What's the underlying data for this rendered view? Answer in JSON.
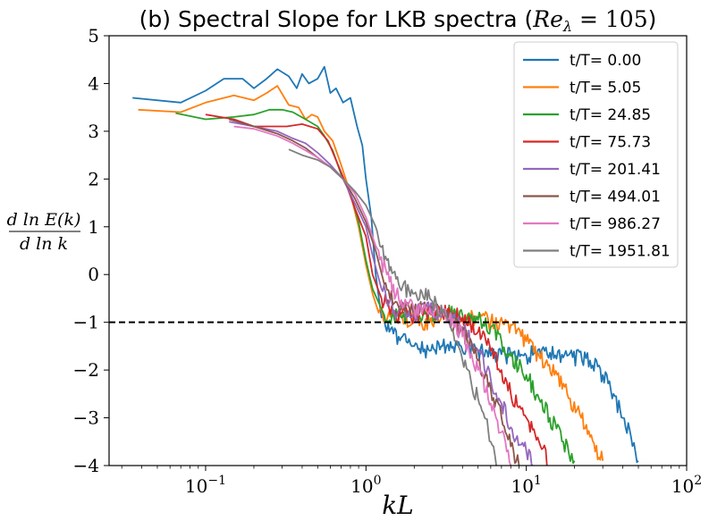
{
  "chart_data": {
    "type": "line",
    "title": "(b) Spectral Slope for LKB spectra (Re_λ = 105)",
    "title_prefix": "(b) Spectral Slope for LKB spectra (",
    "title_math": "Re",
    "title_sub": "λ",
    "title_eq": " = 105",
    "title_suffix": ")",
    "xlabel": "kL",
    "ylabel_num": "d ln E(k)",
    "ylabel_den": "d ln k",
    "xscale": "log",
    "xlim": [
      0.025,
      100
    ],
    "ylim": [
      -4,
      5
    ],
    "xticks": [
      {
        "value": 0.1,
        "base": "10",
        "exp": "−1"
      },
      {
        "value": 1,
        "base": "10",
        "exp": "0"
      },
      {
        "value": 10,
        "base": "10",
        "exp": "1"
      },
      {
        "value": 100,
        "base": "10",
        "exp": "2"
      }
    ],
    "yticks": [
      {
        "value": 5,
        "label": "5"
      },
      {
        "value": 4,
        "label": "4"
      },
      {
        "value": 3,
        "label": "3"
      },
      {
        "value": 2,
        "label": "2"
      },
      {
        "value": 1,
        "label": "1"
      },
      {
        "value": 0,
        "label": "0"
      },
      {
        "value": -1,
        "label": "−1"
      },
      {
        "value": -2,
        "label": "−2"
      },
      {
        "value": -3,
        "label": "−3"
      },
      {
        "value": -4,
        "label": "−4"
      }
    ],
    "reference_line": {
      "y": -1,
      "style": "dashed",
      "color": "#000000"
    },
    "legend_position": "top-right",
    "series": [
      {
        "name": "t/T= 0.00",
        "color": "#1f77b4",
        "points": [
          [
            0.035,
            3.7
          ],
          [
            0.07,
            3.6
          ],
          [
            0.1,
            3.85
          ],
          [
            0.13,
            4.1
          ],
          [
            0.17,
            4.1
          ],
          [
            0.2,
            3.9
          ],
          [
            0.24,
            4.1
          ],
          [
            0.28,
            4.3
          ],
          [
            0.33,
            4.15
          ],
          [
            0.37,
            3.9
          ],
          [
            0.4,
            4.2
          ],
          [
            0.44,
            4.0
          ],
          [
            0.5,
            4.1
          ],
          [
            0.55,
            4.35
          ],
          [
            0.6,
            3.8
          ],
          [
            0.65,
            3.9
          ],
          [
            0.72,
            3.6
          ],
          [
            0.8,
            3.7
          ],
          [
            0.88,
            3.1
          ],
          [
            0.95,
            2.7
          ],
          [
            1.0,
            2.0
          ],
          [
            1.08,
            1.2
          ],
          [
            1.15,
            0.0
          ],
          [
            1.25,
            -0.9
          ],
          [
            1.4,
            -1.2
          ],
          [
            1.6,
            -1.3
          ],
          [
            2.0,
            -1.5
          ],
          [
            2.5,
            -1.6
          ],
          [
            3.0,
            -1.5
          ],
          [
            4.0,
            -1.6
          ],
          [
            5.0,
            -1.6
          ],
          [
            6.0,
            -1.7
          ],
          [
            8.0,
            -1.7
          ],
          [
            10.0,
            -1.7
          ],
          [
            13.0,
            -1.6
          ],
          [
            18.0,
            -1.7
          ],
          [
            25.0,
            -1.8
          ],
          [
            30.0,
            -2.1
          ],
          [
            35.0,
            -2.5
          ],
          [
            40.0,
            -3.0
          ],
          [
            45.0,
            -3.4
          ],
          [
            50.0,
            -3.9
          ]
        ]
      },
      {
        "name": "t/T= 5.05",
        "color": "#ff7f0e",
        "points": [
          [
            0.038,
            3.45
          ],
          [
            0.07,
            3.4
          ],
          [
            0.1,
            3.6
          ],
          [
            0.15,
            3.75
          ],
          [
            0.2,
            3.65
          ],
          [
            0.24,
            3.8
          ],
          [
            0.28,
            3.95
          ],
          [
            0.33,
            3.55
          ],
          [
            0.38,
            3.5
          ],
          [
            0.42,
            3.25
          ],
          [
            0.46,
            3.35
          ],
          [
            0.5,
            3.3
          ],
          [
            0.55,
            3.0
          ],
          [
            0.62,
            2.8
          ],
          [
            0.7,
            2.3
          ],
          [
            0.8,
            1.7
          ],
          [
            0.9,
            1.0
          ],
          [
            1.0,
            0.2
          ],
          [
            1.1,
            -0.4
          ],
          [
            1.2,
            -0.8
          ],
          [
            1.5,
            -0.9
          ],
          [
            2.0,
            -0.95
          ],
          [
            2.5,
            -1.0
          ],
          [
            3.0,
            -0.85
          ],
          [
            4.0,
            -0.9
          ],
          [
            5.0,
            -0.9
          ],
          [
            6.0,
            -1.0
          ],
          [
            8.0,
            -1.05
          ],
          [
            10.0,
            -1.4
          ],
          [
            12.0,
            -1.7
          ],
          [
            15.0,
            -2.1
          ],
          [
            18.0,
            -2.5
          ],
          [
            22.0,
            -3.0
          ],
          [
            25.0,
            -3.4
          ],
          [
            30.0,
            -3.9
          ]
        ]
      },
      {
        "name": "t/T= 24.85",
        "color": "#2ca02c",
        "points": [
          [
            0.065,
            3.38
          ],
          [
            0.1,
            3.25
          ],
          [
            0.15,
            3.3
          ],
          [
            0.2,
            3.35
          ],
          [
            0.25,
            3.45
          ],
          [
            0.3,
            3.45
          ],
          [
            0.35,
            3.4
          ],
          [
            0.42,
            3.25
          ],
          [
            0.5,
            3.1
          ],
          [
            0.55,
            2.9
          ],
          [
            0.62,
            2.6
          ],
          [
            0.7,
            2.1
          ],
          [
            0.8,
            1.7
          ],
          [
            0.9,
            1.1
          ],
          [
            1.0,
            0.3
          ],
          [
            1.1,
            -0.3
          ],
          [
            1.3,
            -0.85
          ],
          [
            1.6,
            -0.9
          ],
          [
            2.0,
            -0.85
          ],
          [
            3.0,
            -0.8
          ],
          [
            4.0,
            -0.85
          ],
          [
            5.0,
            -0.95
          ],
          [
            6.0,
            -1.1
          ],
          [
            7.0,
            -1.4
          ],
          [
            8.0,
            -1.7
          ],
          [
            10.0,
            -2.1
          ],
          [
            12.0,
            -2.6
          ],
          [
            14.0,
            -3.0
          ],
          [
            17.0,
            -3.5
          ],
          [
            20.0,
            -3.9
          ]
        ]
      },
      {
        "name": "t/T= 75.73",
        "color": "#d62728",
        "points": [
          [
            0.1,
            3.35
          ],
          [
            0.15,
            3.25
          ],
          [
            0.2,
            3.1
          ],
          [
            0.26,
            3.1
          ],
          [
            0.32,
            3.1
          ],
          [
            0.4,
            3.15
          ],
          [
            0.5,
            3.05
          ],
          [
            0.58,
            2.8
          ],
          [
            0.65,
            2.4
          ],
          [
            0.75,
            1.9
          ],
          [
            0.85,
            1.4
          ],
          [
            1.0,
            0.8
          ],
          [
            1.1,
            0.0
          ],
          [
            1.25,
            -0.5
          ],
          [
            1.5,
            -0.8
          ],
          [
            2.0,
            -0.85
          ],
          [
            2.5,
            -0.8
          ],
          [
            3.0,
            -0.8
          ],
          [
            4.0,
            -0.9
          ],
          [
            5.0,
            -1.2
          ],
          [
            6.0,
            -1.6
          ],
          [
            7.0,
            -2.0
          ],
          [
            8.0,
            -2.5
          ],
          [
            10.0,
            -3.0
          ],
          [
            12.0,
            -3.5
          ],
          [
            14.0,
            -4.0
          ]
        ]
      },
      {
        "name": "t/T= 201.41",
        "color": "#9467bd",
        "points": [
          [
            0.14,
            3.2
          ],
          [
            0.2,
            3.1
          ],
          [
            0.28,
            3.0
          ],
          [
            0.35,
            2.85
          ],
          [
            0.42,
            2.75
          ],
          [
            0.5,
            2.55
          ],
          [
            0.6,
            2.3
          ],
          [
            0.72,
            2.0
          ],
          [
            0.85,
            1.5
          ],
          [
            1.0,
            1.0
          ],
          [
            1.1,
            0.4
          ],
          [
            1.25,
            -0.3
          ],
          [
            1.5,
            -0.75
          ],
          [
            2.0,
            -0.8
          ],
          [
            2.5,
            -0.75
          ],
          [
            3.0,
            -0.85
          ],
          [
            4.0,
            -1.1
          ],
          [
            5.0,
            -1.6
          ],
          [
            6.0,
            -2.2
          ],
          [
            7.0,
            -2.7
          ],
          [
            8.0,
            -3.2
          ],
          [
            10.0,
            -3.7
          ],
          [
            11.0,
            -4.0
          ]
        ]
      },
      {
        "name": "t/T= 494.01",
        "color": "#8c564b",
        "points": [
          [
            0.14,
            3.25
          ],
          [
            0.2,
            3.1
          ],
          [
            0.28,
            2.95
          ],
          [
            0.35,
            2.8
          ],
          [
            0.42,
            2.65
          ],
          [
            0.5,
            2.45
          ],
          [
            0.6,
            2.25
          ],
          [
            0.72,
            2.0
          ],
          [
            0.85,
            1.6
          ],
          [
            1.0,
            1.1
          ],
          [
            1.15,
            0.5
          ],
          [
            1.3,
            -0.2
          ],
          [
            1.5,
            -0.6
          ],
          [
            2.0,
            -0.75
          ],
          [
            2.5,
            -0.7
          ],
          [
            3.0,
            -0.85
          ],
          [
            4.0,
            -1.2
          ],
          [
            5.0,
            -1.8
          ],
          [
            6.0,
            -2.4
          ],
          [
            7.0,
            -3.0
          ],
          [
            8.0,
            -3.6
          ],
          [
            9.0,
            -4.0
          ]
        ]
      },
      {
        "name": "t/T= 986.27",
        "color": "#e377c2",
        "points": [
          [
            0.15,
            3.1
          ],
          [
            0.2,
            3.05
          ],
          [
            0.28,
            2.9
          ],
          [
            0.35,
            2.75
          ],
          [
            0.42,
            2.6
          ],
          [
            0.5,
            2.45
          ],
          [
            0.6,
            2.25
          ],
          [
            0.72,
            2.0
          ],
          [
            0.85,
            1.7
          ],
          [
            1.0,
            1.2
          ],
          [
            1.15,
            0.6
          ],
          [
            1.35,
            0.0
          ],
          [
            1.6,
            -0.5
          ],
          [
            2.0,
            -0.75
          ],
          [
            2.5,
            -0.7
          ],
          [
            3.0,
            -0.75
          ],
          [
            4.0,
            -1.3
          ],
          [
            5.0,
            -2.0
          ],
          [
            6.0,
            -2.7
          ],
          [
            7.0,
            -3.3
          ],
          [
            8.0,
            -4.0
          ]
        ]
      },
      {
        "name": "t/T= 1951.81",
        "color": "#7f7f7f",
        "points": [
          [
            0.33,
            2.62
          ],
          [
            0.4,
            2.5
          ],
          [
            0.5,
            2.4
          ],
          [
            0.6,
            2.25
          ],
          [
            0.72,
            2.0
          ],
          [
            0.85,
            1.75
          ],
          [
            1.0,
            1.45
          ],
          [
            1.15,
            1.0
          ],
          [
            1.35,
            0.3
          ],
          [
            1.6,
            -0.2
          ],
          [
            2.0,
            -0.4
          ],
          [
            2.5,
            -0.5
          ],
          [
            3.0,
            -0.8
          ],
          [
            3.5,
            -1.2
          ],
          [
            4.0,
            -1.8
          ],
          [
            4.5,
            -2.2
          ],
          [
            5.0,
            -2.6
          ],
          [
            5.5,
            -3.0
          ],
          [
            6.0,
            -3.5
          ],
          [
            6.5,
            -4.0
          ]
        ]
      }
    ]
  }
}
